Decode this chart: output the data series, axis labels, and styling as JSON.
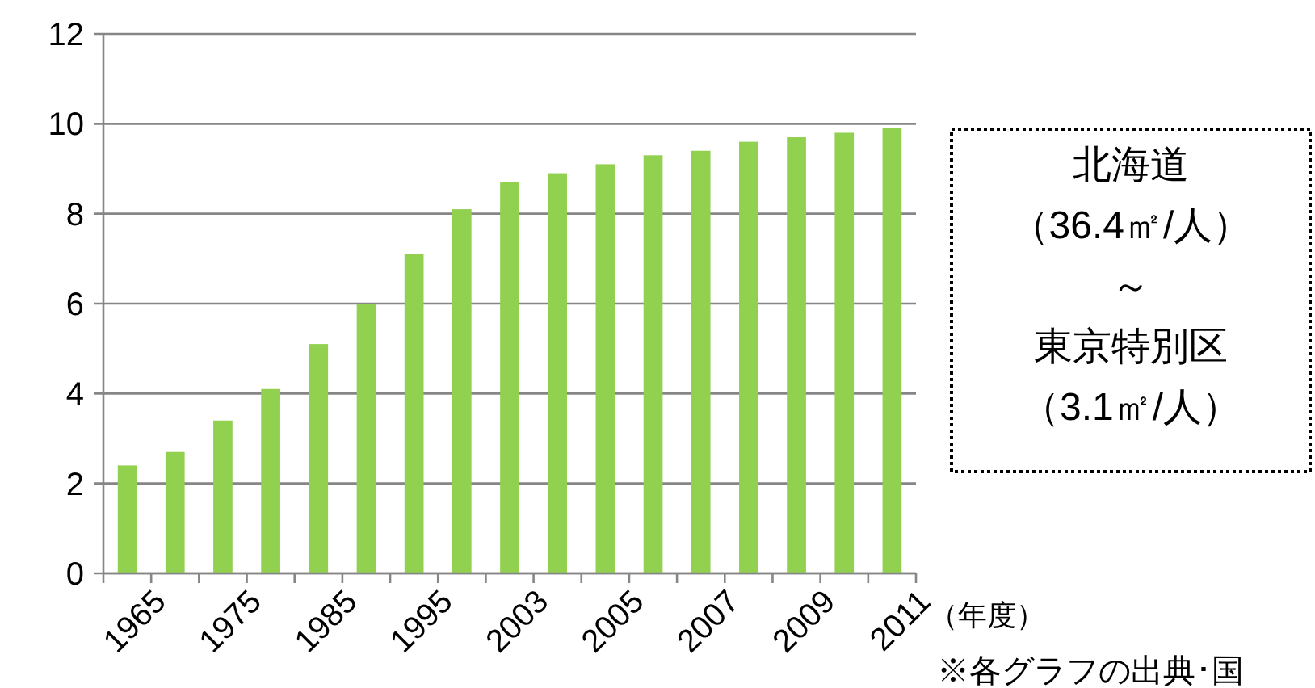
{
  "chart_data": {
    "type": "bar",
    "xlabel": "（年度）",
    "categories": [
      "1965",
      null,
      "1975",
      null,
      "1985",
      null,
      "1995",
      null,
      "2003",
      null,
      "2005",
      null,
      "2007",
      null,
      "2009",
      null,
      "2011"
    ],
    "values": [
      2.4,
      2.7,
      3.4,
      4.1,
      5.1,
      6.0,
      7.1,
      8.1,
      8.7,
      8.9,
      9.1,
      9.3,
      9.4,
      9.6,
      9.7,
      9.8,
      9.9
    ],
    "color": "#92d050",
    "ylim": [
      0,
      12
    ],
    "yticks": [
      0,
      2,
      4,
      6,
      8,
      10,
      12
    ],
    "grid": "y",
    "annotations": [
      "北海道",
      "（36.4㎡/人）",
      "～",
      "東京特別区",
      "（3.1㎡/人）",
      "※各グラフの出典･国"
    ]
  }
}
